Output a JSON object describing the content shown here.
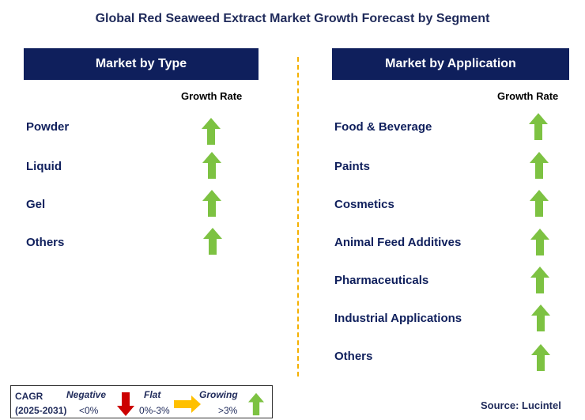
{
  "title": "Global Red Seaweed Extract Market Growth Forecast by Segment",
  "left_panel": {
    "header": "Market by Type",
    "growth_label": "Growth Rate",
    "items": [
      "Powder",
      "Liquid",
      "Gel",
      "Others"
    ]
  },
  "right_panel": {
    "header": "Market by Application",
    "growth_label": "Growth Rate",
    "items": [
      "Food & Beverage",
      "Paints",
      "Cosmetics",
      "Animal Feed Additives",
      "Pharmaceuticals",
      "Industrial Applications",
      "Others"
    ]
  },
  "legend": {
    "cagr": "CAGR",
    "period": "(2025-2031)",
    "negative": "Negative",
    "negative_range": "<0%",
    "flat": "Flat",
    "flat_range": "0%-3%",
    "growing": "Growing",
    "growing_range": ">3%"
  },
  "source": "Source: Lucintel",
  "colors": {
    "navy": "#0f1f5c",
    "green_arrow": "#7dc242",
    "red_arrow": "#cc0000",
    "yellow_arrow": "#ffc000",
    "divider": "#f5b100"
  },
  "icons": {
    "growing": "green-up-arrow-icon",
    "negative": "red-down-arrow-icon",
    "flat": "yellow-right-arrow-icon"
  }
}
